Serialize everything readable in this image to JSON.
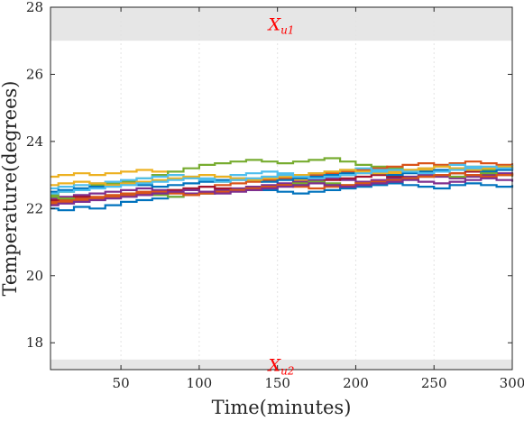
{
  "chart_data": {
    "type": "line",
    "title": "",
    "xlabel": "Time(minutes)",
    "ylabel": "Temperature(degrees)",
    "xlim": [
      5,
      300
    ],
    "ylim": [
      17.2,
      28
    ],
    "x_ticks": [
      50,
      100,
      150,
      200,
      250,
      300
    ],
    "y_ticks": [
      18,
      20,
      22,
      24,
      26,
      28
    ],
    "x_tick_labels": [
      "50",
      "100",
      "150",
      "200",
      "250",
      "300"
    ],
    "y_tick_labels": [
      "18",
      "20",
      "22",
      "24",
      "26",
      "28"
    ],
    "grid": "vertical dotted",
    "step_interval_minutes": 10,
    "regions": [
      {
        "label": "X",
        "subscript": "u1",
        "y_range": [
          27,
          28
        ],
        "color": "#e6e6e6",
        "label_color": "#ff0000"
      },
      {
        "label": "X",
        "subscript": "u2",
        "y_range": [
          17.2,
          17.5
        ],
        "color": "#e6e6e6",
        "label_color": "#ff0000"
      }
    ],
    "series": [
      {
        "color": "#EDB120",
        "values": [
          22.95,
          23.0,
          23.05,
          23.0,
          23.05,
          23.1,
          23.15,
          23.1,
          23.0,
          22.9,
          22.85,
          22.8,
          22.85,
          22.9,
          22.95,
          22.9,
          22.85,
          22.9,
          22.95,
          23.0,
          23.05,
          23.1,
          23.05,
          23.1,
          23.15,
          23.1,
          23.2,
          23.25,
          23.2,
          23.25,
          23.3
        ]
      },
      {
        "color": "#77AC30",
        "values": [
          22.4,
          22.5,
          22.6,
          22.7,
          22.75,
          22.8,
          22.9,
          23.0,
          23.1,
          23.2,
          23.3,
          23.35,
          23.4,
          23.45,
          23.4,
          23.35,
          23.4,
          23.45,
          23.5,
          23.4,
          23.3,
          23.25,
          23.2,
          23.15,
          23.1,
          23.0,
          23.05,
          23.1,
          23.15,
          23.2,
          23.15
        ]
      },
      {
        "color": "#0072BD",
        "values": [
          22.0,
          21.95,
          22.05,
          22.0,
          22.1,
          22.2,
          22.25,
          22.3,
          22.35,
          22.4,
          22.45,
          22.5,
          22.55,
          22.6,
          22.55,
          22.5,
          22.45,
          22.5,
          22.55,
          22.6,
          22.65,
          22.7,
          22.75,
          22.7,
          22.65,
          22.6,
          22.7,
          22.75,
          22.7,
          22.65,
          22.7
        ]
      },
      {
        "color": "#D95319",
        "values": [
          22.2,
          22.25,
          22.3,
          22.35,
          22.4,
          22.45,
          22.5,
          22.5,
          22.55,
          22.6,
          22.65,
          22.7,
          22.75,
          22.8,
          22.85,
          22.9,
          22.95,
          23.0,
          23.05,
          23.1,
          23.15,
          23.2,
          23.25,
          23.3,
          23.35,
          23.3,
          23.35,
          23.4,
          23.35,
          23.3,
          23.35
        ]
      },
      {
        "color": "#7E2F8E",
        "values": [
          22.3,
          22.35,
          22.4,
          22.45,
          22.5,
          22.55,
          22.6,
          22.55,
          22.5,
          22.45,
          22.5,
          22.55,
          22.6,
          22.65,
          22.7,
          22.75,
          22.8,
          22.85,
          22.9,
          22.85,
          22.8,
          22.85,
          22.9,
          22.95,
          23.0,
          22.95,
          22.9,
          22.95,
          23.0,
          23.05,
          23.0
        ]
      },
      {
        "color": "#4DBEEE",
        "values": [
          22.6,
          22.65,
          22.7,
          22.75,
          22.8,
          22.85,
          22.9,
          22.95,
          23.0,
          22.95,
          22.9,
          22.95,
          23.0,
          23.05,
          23.1,
          23.05,
          23.0,
          23.05,
          23.1,
          23.15,
          23.2,
          23.15,
          23.1,
          23.15,
          23.2,
          23.25,
          23.3,
          23.25,
          23.2,
          23.25,
          23.3
        ]
      },
      {
        "color": "#A2142F",
        "values": [
          22.25,
          22.3,
          22.35,
          22.3,
          22.35,
          22.4,
          22.45,
          22.5,
          22.55,
          22.6,
          22.65,
          22.6,
          22.55,
          22.6,
          22.65,
          22.7,
          22.75,
          22.8,
          22.85,
          22.9,
          22.95,
          23.0,
          22.95,
          22.9,
          22.95,
          23.0,
          23.05,
          23.1,
          23.05,
          23.0,
          23.05
        ]
      },
      {
        "color": "#0072BD",
        "values": [
          22.5,
          22.55,
          22.6,
          22.65,
          22.7,
          22.75,
          22.7,
          22.65,
          22.7,
          22.75,
          22.8,
          22.85,
          22.9,
          22.85,
          22.8,
          22.85,
          22.9,
          22.95,
          23.0,
          23.05,
          23.1,
          23.05,
          23.0,
          23.05,
          23.1,
          23.15,
          23.2,
          23.15,
          23.1,
          23.15,
          23.2
        ]
      },
      {
        "color": "#77AC30",
        "values": [
          22.35,
          22.3,
          22.25,
          22.3,
          22.35,
          22.4,
          22.45,
          22.4,
          22.35,
          22.4,
          22.45,
          22.5,
          22.55,
          22.6,
          22.65,
          22.7,
          22.75,
          22.8,
          22.75,
          22.7,
          22.75,
          22.8,
          22.85,
          22.9,
          22.95,
          23.0,
          22.95,
          23.0,
          23.05,
          23.0,
          22.95
        ]
      },
      {
        "color": "#EDB120",
        "values": [
          22.7,
          22.75,
          22.8,
          22.75,
          22.7,
          22.75,
          22.8,
          22.85,
          22.9,
          22.95,
          23.0,
          22.95,
          22.9,
          22.85,
          22.9,
          22.95,
          23.0,
          23.05,
          23.1,
          23.15,
          23.1,
          23.05,
          23.1,
          23.15,
          23.2,
          23.25,
          23.2,
          23.15,
          23.2,
          23.25,
          23.2
        ]
      },
      {
        "color": "#D95319",
        "values": [
          22.15,
          22.2,
          22.25,
          22.3,
          22.35,
          22.4,
          22.45,
          22.5,
          22.45,
          22.4,
          22.45,
          22.5,
          22.55,
          22.6,
          22.65,
          22.7,
          22.65,
          22.6,
          22.65,
          22.7,
          22.75,
          22.8,
          22.85,
          22.9,
          22.95,
          23.0,
          23.05,
          23.0,
          22.95,
          23.0,
          23.05
        ]
      },
      {
        "color": "#4DBEEE",
        "values": [
          22.45,
          22.5,
          22.55,
          22.6,
          22.65,
          22.7,
          22.75,
          22.8,
          22.85,
          22.9,
          22.85,
          22.8,
          22.85,
          22.9,
          22.95,
          23.0,
          22.95,
          22.9,
          22.95,
          23.0,
          23.05,
          23.1,
          23.15,
          23.1,
          23.05,
          23.1,
          23.15,
          23.2,
          23.25,
          23.2,
          23.15
        ]
      },
      {
        "color": "#7E2F8E",
        "values": [
          22.1,
          22.15,
          22.2,
          22.25,
          22.3,
          22.35,
          22.4,
          22.45,
          22.5,
          22.55,
          22.5,
          22.45,
          22.5,
          22.55,
          22.6,
          22.65,
          22.7,
          22.75,
          22.7,
          22.65,
          22.7,
          22.75,
          22.8,
          22.85,
          22.8,
          22.75,
          22.8,
          22.85,
          22.9,
          22.85,
          22.8
        ]
      }
    ]
  }
}
